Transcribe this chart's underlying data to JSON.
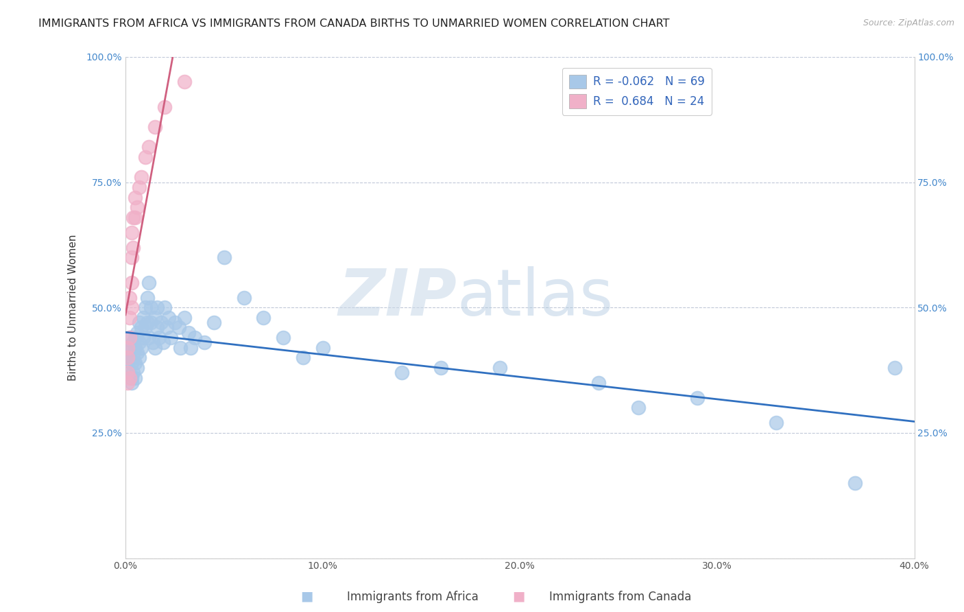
{
  "title": "IMMIGRANTS FROM AFRICA VS IMMIGRANTS FROM CANADA BIRTHS TO UNMARRIED WOMEN CORRELATION CHART",
  "source": "Source: ZipAtlas.com",
  "xlabel_bottom": [
    "Immigrants from Africa",
    "Immigrants from Canada"
  ],
  "ylabel": "Births to Unmarried Women",
  "watermark": "ZIPatlas",
  "xlim": [
    0.0,
    0.4
  ],
  "ylim": [
    0.0,
    1.0
  ],
  "xticks": [
    0.0,
    0.1,
    0.2,
    0.3,
    0.4
  ],
  "xtick_labels": [
    "0.0%",
    "10.0%",
    "20.0%",
    "30.0%",
    "40.0%"
  ],
  "yticks": [
    0.0,
    0.25,
    0.5,
    0.75,
    1.0
  ],
  "ytick_labels_left": [
    "",
    "25.0%",
    "50.0%",
    "75.0%",
    "100.0%"
  ],
  "ytick_labels_right": [
    "",
    "25.0%",
    "50.0%",
    "75.0%",
    "100.0%"
  ],
  "africa_R": -0.062,
  "africa_N": 69,
  "canada_R": 0.684,
  "canada_N": 24,
  "africa_color": "#a8c8e8",
  "canada_color": "#f0b0c8",
  "africa_line_color": "#3070c0",
  "canada_line_color": "#d06080",
  "background_color": "#ffffff",
  "grid_color": "#c0c8d8",
  "title_fontsize": 11.5,
  "axis_fontsize": 11,
  "tick_fontsize": 10,
  "legend_fontsize": 12,
  "africa_x": [
    0.001,
    0.001,
    0.002,
    0.002,
    0.003,
    0.003,
    0.003,
    0.003,
    0.004,
    0.004,
    0.004,
    0.005,
    0.005,
    0.005,
    0.005,
    0.006,
    0.006,
    0.006,
    0.007,
    0.007,
    0.007,
    0.008,
    0.008,
    0.009,
    0.009,
    0.01,
    0.01,
    0.011,
    0.011,
    0.012,
    0.012,
    0.013,
    0.013,
    0.014,
    0.015,
    0.015,
    0.016,
    0.016,
    0.017,
    0.018,
    0.019,
    0.02,
    0.021,
    0.022,
    0.023,
    0.025,
    0.027,
    0.028,
    0.03,
    0.032,
    0.033,
    0.035,
    0.04,
    0.045,
    0.05,
    0.06,
    0.07,
    0.08,
    0.09,
    0.1,
    0.14,
    0.16,
    0.19,
    0.24,
    0.26,
    0.29,
    0.33,
    0.37,
    0.39
  ],
  "africa_y": [
    0.41,
    0.38,
    0.44,
    0.4,
    0.36,
    0.42,
    0.39,
    0.35,
    0.43,
    0.4,
    0.37,
    0.44,
    0.42,
    0.39,
    0.36,
    0.45,
    0.41,
    0.38,
    0.47,
    0.43,
    0.4,
    0.46,
    0.42,
    0.48,
    0.44,
    0.5,
    0.46,
    0.52,
    0.47,
    0.55,
    0.44,
    0.5,
    0.47,
    0.43,
    0.48,
    0.42,
    0.5,
    0.46,
    0.44,
    0.47,
    0.43,
    0.5,
    0.46,
    0.48,
    0.44,
    0.47,
    0.46,
    0.42,
    0.48,
    0.45,
    0.42,
    0.44,
    0.43,
    0.47,
    0.6,
    0.52,
    0.48,
    0.44,
    0.4,
    0.42,
    0.37,
    0.38,
    0.38,
    0.35,
    0.3,
    0.32,
    0.27,
    0.15,
    0.38
  ],
  "canada_x": [
    0.001,
    0.001,
    0.001,
    0.001,
    0.002,
    0.002,
    0.002,
    0.002,
    0.003,
    0.003,
    0.003,
    0.003,
    0.004,
    0.004,
    0.005,
    0.005,
    0.006,
    0.007,
    0.008,
    0.01,
    0.012,
    0.015,
    0.02,
    0.03
  ],
  "canada_y": [
    0.35,
    0.37,
    0.4,
    0.42,
    0.44,
    0.48,
    0.52,
    0.36,
    0.5,
    0.55,
    0.6,
    0.65,
    0.62,
    0.68,
    0.68,
    0.72,
    0.7,
    0.74,
    0.76,
    0.8,
    0.82,
    0.86,
    0.9,
    0.95
  ]
}
